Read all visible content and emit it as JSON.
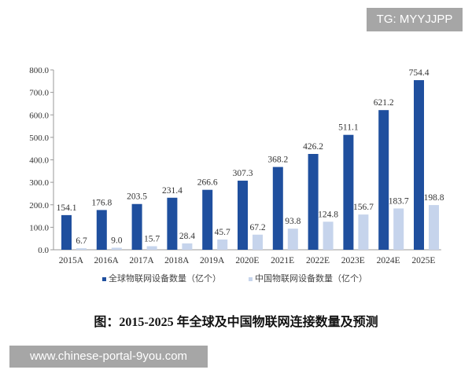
{
  "watermarks": {
    "top": "TG: MYYJJPP",
    "bottom": "www.chinese-portal-9you.com"
  },
  "caption": "图：2015-2025 年全球及中国物联网连接数量及预测",
  "chart_data": {
    "type": "bar",
    "categories": [
      "2015A",
      "2016A",
      "2017A",
      "2018A",
      "2019A",
      "2020E",
      "2021E",
      "2022E",
      "2023E",
      "2024E",
      "2025E"
    ],
    "series": [
      {
        "name": "全球物联网设备数量（亿个）",
        "color": "#1f4f9e",
        "values": [
          154.1,
          176.8,
          203.5,
          231.4,
          266.6,
          307.3,
          368.2,
          426.2,
          511.1,
          621.2,
          754.4
        ]
      },
      {
        "name": "中国物联网设备数量（亿个）",
        "color": "#c6d4ec",
        "values": [
          6.7,
          9.0,
          15.7,
          28.4,
          45.7,
          67.2,
          93.8,
          124.8,
          156.7,
          183.7,
          198.8
        ]
      }
    ],
    "ylim": [
      0,
      800
    ],
    "yticks": [
      "0.0",
      "100.0",
      "200.0",
      "300.0",
      "400.0",
      "500.0",
      "600.0",
      "700.0",
      "800.0"
    ],
    "grid": false,
    "legend": "bottom"
  }
}
